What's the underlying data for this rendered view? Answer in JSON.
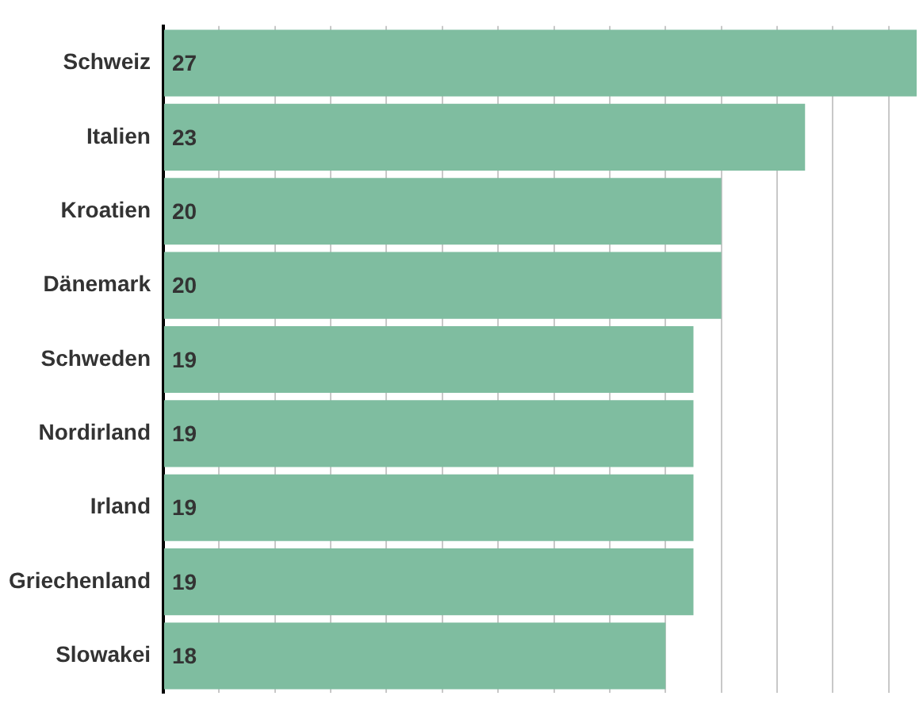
{
  "chart_data": {
    "type": "bar",
    "orientation": "horizontal",
    "categories": [
      "Schweiz",
      "Italien",
      "Kroatien",
      "Dänemark",
      "Schweden",
      "Nordirland",
      "Irland",
      "Griechenland",
      "Slowakei"
    ],
    "values": [
      27,
      23,
      20,
      20,
      19,
      19,
      19,
      19,
      18
    ],
    "color": "#7fbda0",
    "xlim": [
      0,
      27
    ],
    "xticks": [
      {
        "value": 0,
        "label": null
      },
      {
        "value": 2,
        "label": null
      },
      {
        "value": 4,
        "label": null
      },
      {
        "value": 6,
        "label": null
      },
      {
        "value": 8,
        "label": null
      },
      {
        "value": 10,
        "label": null
      },
      {
        "value": 12,
        "label": null
      },
      {
        "value": 14,
        "label": null
      },
      {
        "value": 16,
        "label": null
      },
      {
        "value": 18,
        "label": null
      },
      {
        "value": 20,
        "label": null
      },
      {
        "value": 22,
        "label": null
      },
      {
        "value": 24,
        "label": null
      },
      {
        "value": 26,
        "label": null
      }
    ],
    "tick_labels": "y",
    "grid": "x",
    "legend": false,
    "data_labels": true
  }
}
